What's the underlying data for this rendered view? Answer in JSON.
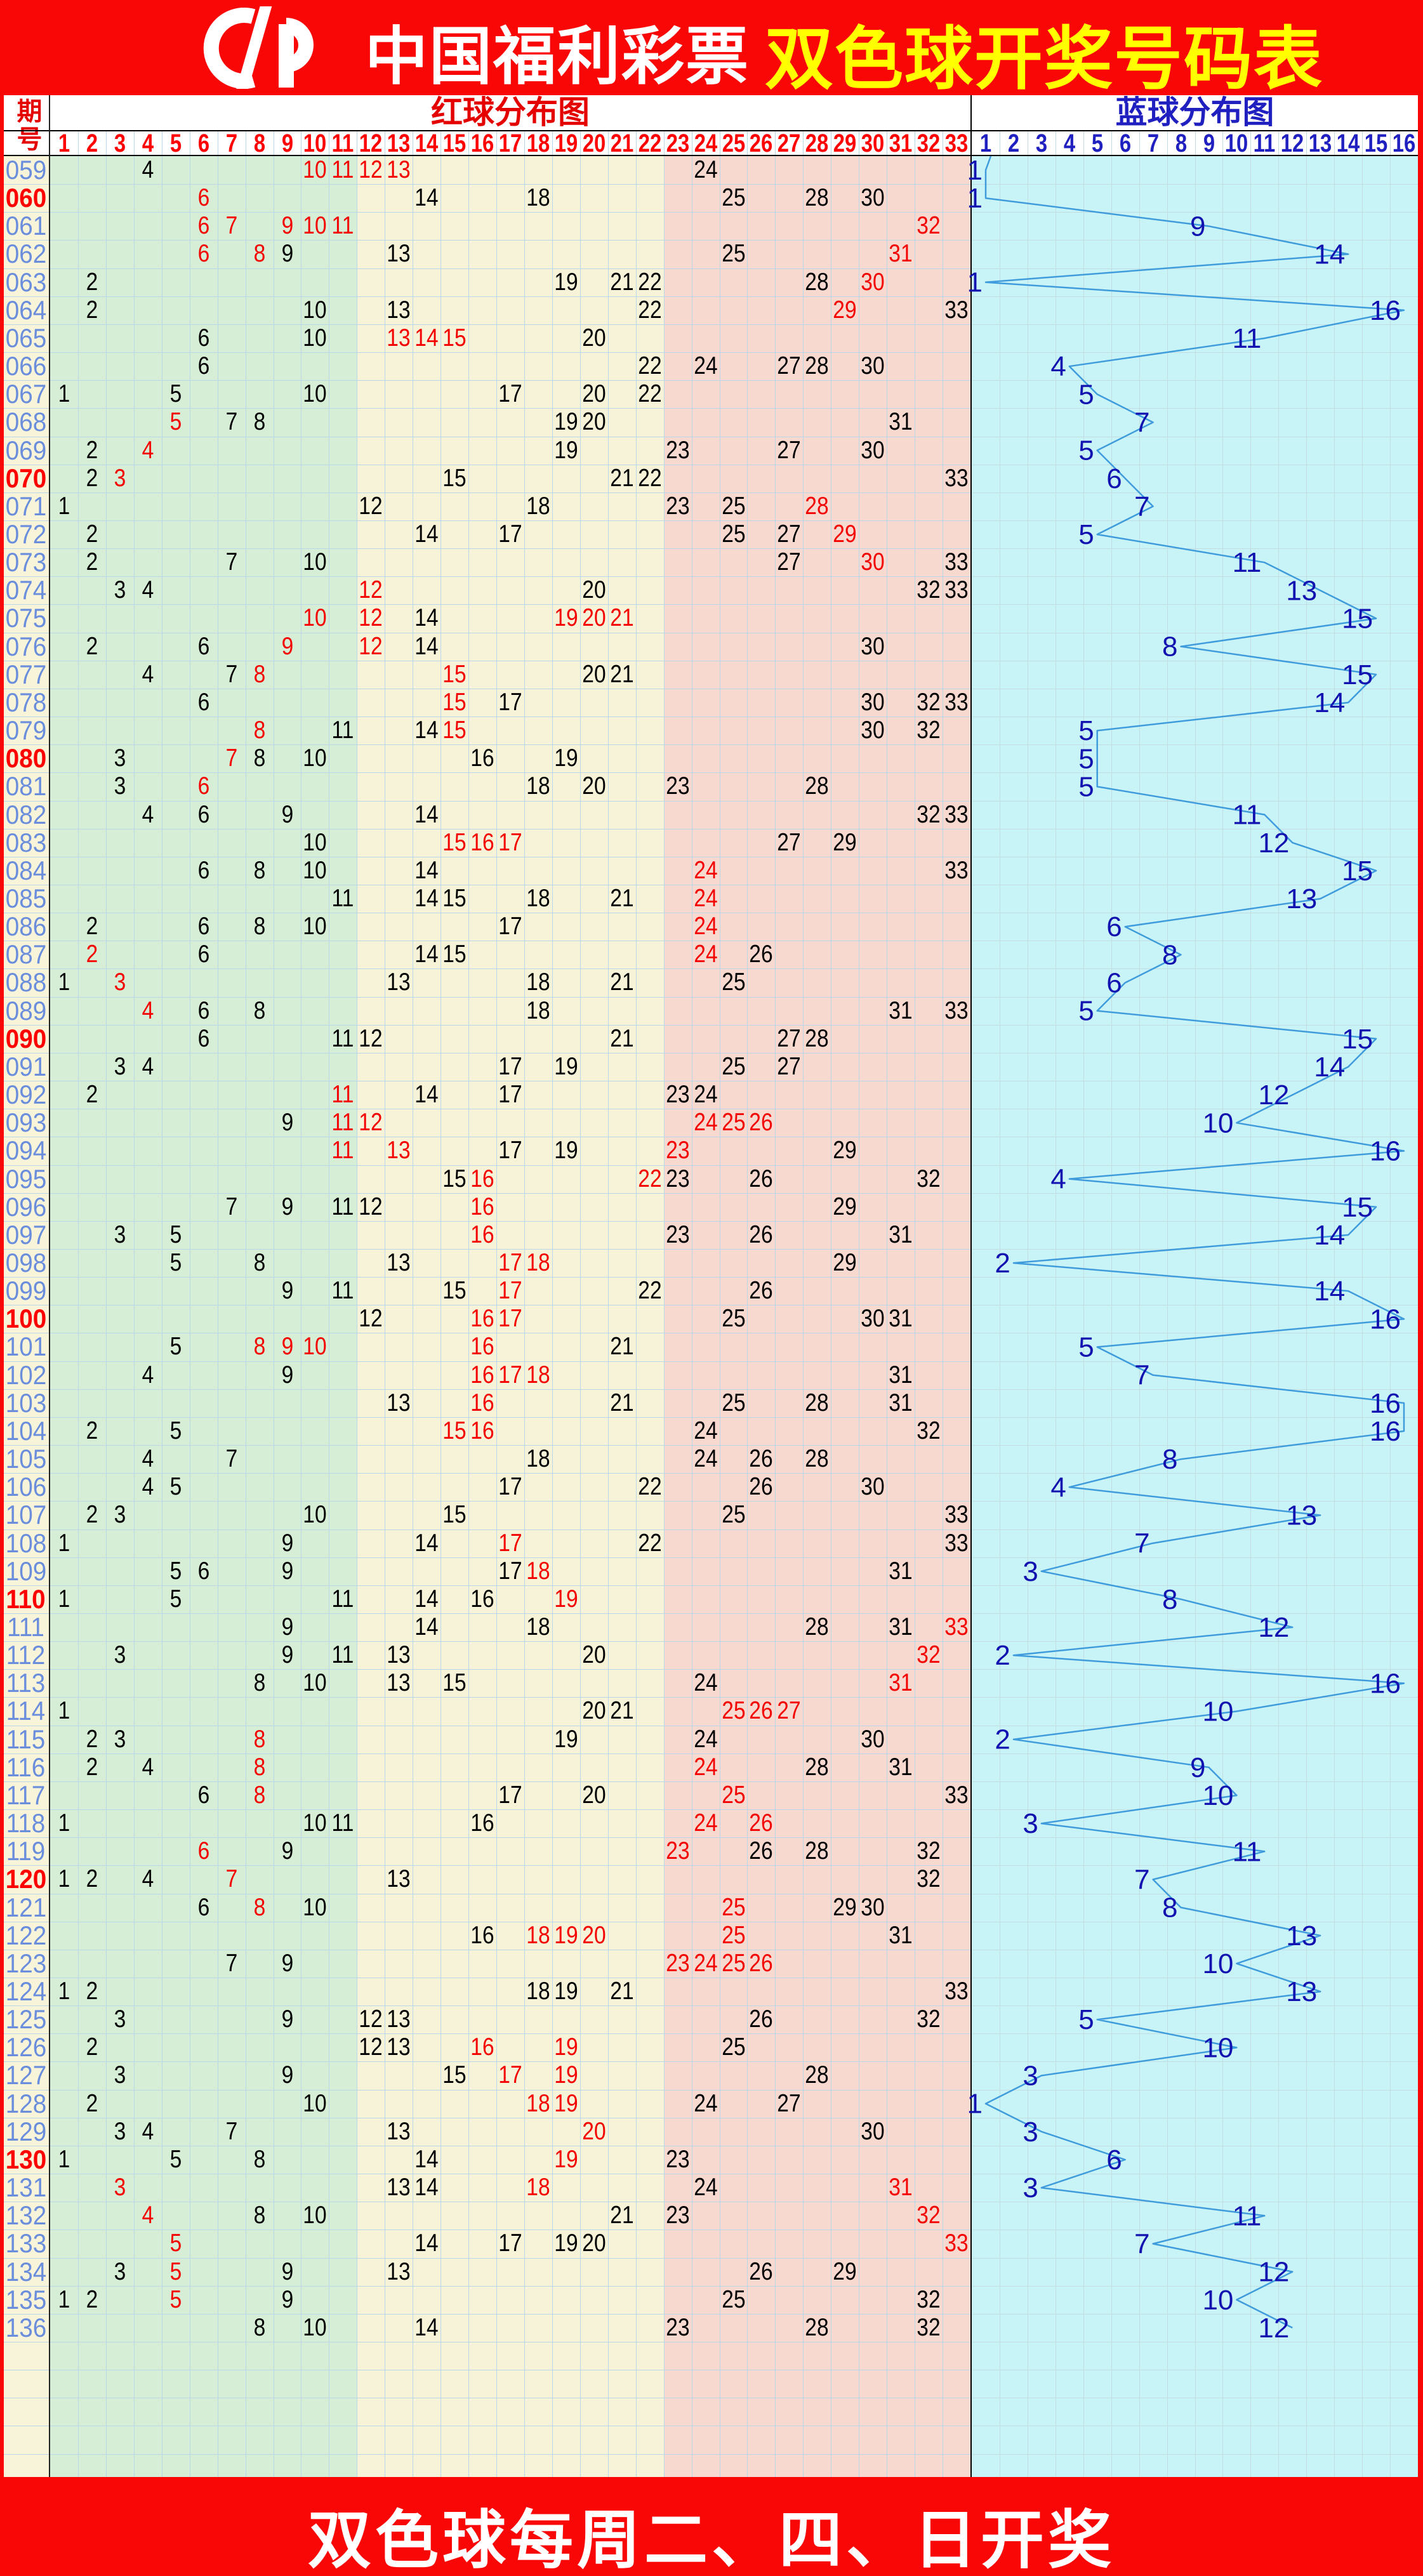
{
  "header": {
    "brand": "中国福利彩票",
    "title": "双色球开奖号码表",
    "logo_icon": "cfp-logo"
  },
  "table": {
    "period_label": "期号",
    "red_title": "红球分布图",
    "blue_title": "蓝球分布图",
    "red_columns": 33,
    "blue_columns": 16
  },
  "footer": {
    "text": "双色球每周二、四、日开奖"
  },
  "colors": {
    "page_red": "#F90606",
    "title_yellow": "#FFFF00",
    "band_green": "#D5EED5",
    "band_cream": "#F7F3D8",
    "band_pink": "#F8D9D0",
    "band_cyan": "#C9F4F7",
    "period_col_bg": "#F8F4DA",
    "grid_red_area": "#B9D7E9",
    "grid_blue_area": "#C2DCE0",
    "period_text_blue": "#6B8EDC",
    "highlight_red": "#FF0000",
    "ball_black": "#000000",
    "ball_hot_red": "#F50000",
    "blue_label": "#1212B0",
    "blue_line": "#3E9BDC",
    "divider_black": "#000000"
  },
  "chart_data": {
    "type": "table",
    "title": "双色球开奖号码表",
    "red_axis_ticks": [
      1,
      2,
      3,
      4,
      5,
      6,
      7,
      8,
      9,
      10,
      11,
      12,
      13,
      14,
      15,
      16,
      17,
      18,
      19,
      20,
      21,
      22,
      23,
      24,
      25,
      26,
      27,
      28,
      29,
      30,
      31,
      32,
      33
    ],
    "blue_axis_ticks": [
      1,
      2,
      3,
      4,
      5,
      6,
      7,
      8,
      9,
      10,
      11,
      12,
      13,
      14,
      15,
      16
    ],
    "rows_format": [
      "period",
      "red_balls",
      "red_highlighted",
      "blue_ball"
    ],
    "rows": [
      [
        "059",
        [
          4,
          10,
          11,
          12,
          13,
          24
        ],
        [
          10,
          11,
          12,
          13
        ],
        1
      ],
      [
        "060",
        [
          6,
          14,
          18,
          25,
          28,
          30
        ],
        [
          6
        ],
        1
      ],
      [
        "061",
        [
          6,
          7,
          9,
          10,
          11,
          32
        ],
        [
          6,
          7,
          9,
          10,
          11,
          32
        ],
        9
      ],
      [
        "062",
        [
          6,
          8,
          9,
          13,
          25,
          31
        ],
        [
          6,
          8,
          31
        ],
        14
      ],
      [
        "063",
        [
          2,
          19,
          21,
          22,
          28,
          30
        ],
        [
          30
        ],
        1
      ],
      [
        "064",
        [
          2,
          10,
          13,
          22,
          29,
          33
        ],
        [
          29
        ],
        16
      ],
      [
        "065",
        [
          6,
          10,
          13,
          14,
          15,
          20
        ],
        [
          13,
          14,
          15
        ],
        11
      ],
      [
        "066",
        [
          6,
          22,
          24,
          27,
          28,
          30
        ],
        [],
        4
      ],
      [
        "067",
        [
          1,
          5,
          10,
          17,
          20,
          22
        ],
        [],
        5
      ],
      [
        "068",
        [
          5,
          7,
          8,
          19,
          20,
          31
        ],
        [
          5
        ],
        7
      ],
      [
        "069",
        [
          2,
          4,
          19,
          23,
          27,
          30
        ],
        [
          4
        ],
        5
      ],
      [
        "070",
        [
          2,
          3,
          15,
          21,
          22,
          33
        ],
        [
          3
        ],
        6
      ],
      [
        "071",
        [
          1,
          12,
          18,
          23,
          25,
          28
        ],
        [
          28
        ],
        7
      ],
      [
        "072",
        [
          2,
          14,
          17,
          25,
          27,
          29
        ],
        [
          29
        ],
        5
      ],
      [
        "073",
        [
          2,
          7,
          10,
          27,
          30,
          33
        ],
        [
          30
        ],
        11
      ],
      [
        "074",
        [
          3,
          4,
          12,
          20,
          32,
          33
        ],
        [
          12
        ],
        13
      ],
      [
        "075",
        [
          10,
          12,
          14,
          19,
          20,
          21
        ],
        [
          10,
          12,
          19,
          20,
          21
        ],
        15
      ],
      [
        "076",
        [
          2,
          6,
          9,
          12,
          14,
          30
        ],
        [
          9,
          12
        ],
        8
      ],
      [
        "077",
        [
          4,
          7,
          8,
          15,
          20,
          21
        ],
        [
          8,
          15
        ],
        15
      ],
      [
        "078",
        [
          6,
          15,
          17,
          30,
          32,
          33
        ],
        [
          15
        ],
        14
      ],
      [
        "079",
        [
          8,
          11,
          14,
          15,
          30,
          32
        ],
        [
          8,
          15
        ],
        5
      ],
      [
        "080",
        [
          3,
          7,
          8,
          10,
          16,
          19
        ],
        [
          7
        ],
        5
      ],
      [
        "081",
        [
          3,
          6,
          18,
          20,
          23,
          28
        ],
        [
          6
        ],
        5
      ],
      [
        "082",
        [
          4,
          6,
          9,
          14,
          32,
          33
        ],
        [],
        11
      ],
      [
        "083",
        [
          10,
          15,
          16,
          17,
          27,
          29
        ],
        [
          15,
          16,
          17
        ],
        12
      ],
      [
        "084",
        [
          6,
          8,
          10,
          14,
          24,
          33
        ],
        [
          24
        ],
        15
      ],
      [
        "085",
        [
          11,
          14,
          15,
          18,
          21,
          24
        ],
        [
          24
        ],
        13
      ],
      [
        "086",
        [
          2,
          6,
          8,
          10,
          17,
          24
        ],
        [
          24
        ],
        6
      ],
      [
        "087",
        [
          2,
          6,
          14,
          15,
          24,
          26
        ],
        [
          2,
          24
        ],
        8
      ],
      [
        "088",
        [
          1,
          3,
          13,
          18,
          21,
          25
        ],
        [
          3
        ],
        6
      ],
      [
        "089",
        [
          4,
          6,
          8,
          18,
          31,
          33
        ],
        [
          4
        ],
        5
      ],
      [
        "090",
        [
          6,
          11,
          12,
          21,
          27,
          28
        ],
        [],
        15
      ],
      [
        "091",
        [
          3,
          4,
          17,
          19,
          25,
          27
        ],
        [],
        14
      ],
      [
        "092",
        [
          2,
          11,
          14,
          17,
          23,
          24
        ],
        [
          11
        ],
        12
      ],
      [
        "093",
        [
          9,
          11,
          12,
          24,
          25,
          26
        ],
        [
          11,
          12,
          24,
          25,
          26
        ],
        10
      ],
      [
        "094",
        [
          11,
          13,
          17,
          19,
          23,
          29
        ],
        [
          11,
          13,
          23
        ],
        16
      ],
      [
        "095",
        [
          15,
          16,
          22,
          23,
          26,
          32
        ],
        [
          16,
          22
        ],
        4
      ],
      [
        "096",
        [
          7,
          9,
          11,
          12,
          16,
          29
        ],
        [
          16
        ],
        15
      ],
      [
        "097",
        [
          3,
          5,
          16,
          23,
          26,
          31
        ],
        [
          16
        ],
        14
      ],
      [
        "098",
        [
          5,
          8,
          13,
          17,
          18,
          29
        ],
        [
          17,
          18
        ],
        2
      ],
      [
        "099",
        [
          9,
          11,
          15,
          17,
          22,
          26
        ],
        [
          17
        ],
        14
      ],
      [
        "100",
        [
          12,
          16,
          17,
          25,
          30,
          31
        ],
        [
          16,
          17
        ],
        16
      ],
      [
        "101",
        [
          5,
          8,
          9,
          10,
          16,
          21
        ],
        [
          8,
          9,
          10,
          16
        ],
        5
      ],
      [
        "102",
        [
          4,
          9,
          16,
          17,
          18,
          31
        ],
        [
          16,
          17,
          18
        ],
        7
      ],
      [
        "103",
        [
          13,
          16,
          21,
          25,
          28,
          31
        ],
        [
          16
        ],
        16
      ],
      [
        "104",
        [
          2,
          5,
          15,
          16,
          24,
          32
        ],
        [
          15,
          16
        ],
        16
      ],
      [
        "105",
        [
          4,
          7,
          18,
          24,
          26,
          28
        ],
        [],
        8
      ],
      [
        "106",
        [
          4,
          5,
          17,
          22,
          26,
          30
        ],
        [],
        4
      ],
      [
        "107",
        [
          2,
          3,
          10,
          15,
          25,
          33
        ],
        [],
        13
      ],
      [
        "108",
        [
          1,
          9,
          14,
          17,
          22,
          33
        ],
        [
          17
        ],
        7
      ],
      [
        "109",
        [
          5,
          6,
          9,
          17,
          18,
          31
        ],
        [
          18
        ],
        3
      ],
      [
        "110",
        [
          1,
          5,
          11,
          14,
          16,
          19
        ],
        [
          19
        ],
        8
      ],
      [
        "111",
        [
          9,
          14,
          18,
          28,
          31,
          33
        ],
        [
          33
        ],
        12
      ],
      [
        "112",
        [
          3,
          9,
          11,
          13,
          20,
          32
        ],
        [
          32
        ],
        2
      ],
      [
        "113",
        [
          8,
          10,
          13,
          15,
          24,
          31
        ],
        [
          31
        ],
        16
      ],
      [
        "114",
        [
          1,
          20,
          21,
          25,
          26,
          27
        ],
        [
          25,
          26,
          27
        ],
        10
      ],
      [
        "115",
        [
          2,
          3,
          8,
          19,
          24,
          30
        ],
        [
          8
        ],
        2
      ],
      [
        "116",
        [
          2,
          4,
          8,
          24,
          28,
          31
        ],
        [
          8,
          24
        ],
        9
      ],
      [
        "117",
        [
          6,
          8,
          17,
          20,
          25,
          33
        ],
        [
          8,
          25
        ],
        10
      ],
      [
        "118",
        [
          1,
          10,
          11,
          16,
          24,
          26
        ],
        [
          24,
          26
        ],
        3
      ],
      [
        "119",
        [
          6,
          9,
          23,
          26,
          28,
          32
        ],
        [
          6,
          23
        ],
        11
      ],
      [
        "120",
        [
          1,
          2,
          4,
          7,
          13,
          32
        ],
        [
          7
        ],
        7
      ],
      [
        "121",
        [
          6,
          8,
          10,
          25,
          29,
          30
        ],
        [
          8,
          25
        ],
        8
      ],
      [
        "122",
        [
          16,
          18,
          19,
          20,
          25,
          31
        ],
        [
          18,
          19,
          20,
          25
        ],
        13
      ],
      [
        "123",
        [
          7,
          9,
          23,
          24,
          25,
          26
        ],
        [
          23,
          24,
          25,
          26
        ],
        10
      ],
      [
        "124",
        [
          1,
          2,
          18,
          19,
          21,
          33
        ],
        [],
        13
      ],
      [
        "125",
        [
          3,
          9,
          12,
          13,
          26,
          32
        ],
        [],
        5
      ],
      [
        "126",
        [
          2,
          12,
          13,
          16,
          19,
          25
        ],
        [
          16,
          19
        ],
        10
      ],
      [
        "127",
        [
          3,
          9,
          15,
          17,
          19,
          28
        ],
        [
          17,
          19
        ],
        3
      ],
      [
        "128",
        [
          2,
          10,
          18,
          19,
          24,
          27
        ],
        [
          18,
          19
        ],
        1
      ],
      [
        "129",
        [
          3,
          4,
          7,
          13,
          20,
          30
        ],
        [
          20
        ],
        3
      ],
      [
        "130",
        [
          1,
          5,
          8,
          14,
          19,
          23
        ],
        [
          19
        ],
        6
      ],
      [
        "131",
        [
          3,
          13,
          14,
          18,
          24,
          31
        ],
        [
          3,
          18,
          31
        ],
        3
      ],
      [
        "132",
        [
          4,
          8,
          10,
          21,
          23,
          32
        ],
        [
          4,
          32
        ],
        11
      ],
      [
        "133",
        [
          5,
          14,
          17,
          19,
          20,
          33
        ],
        [
          5,
          33
        ],
        7
      ],
      [
        "134",
        [
          3,
          5,
          9,
          13,
          26,
          29
        ],
        [
          5
        ],
        12
      ],
      [
        "135",
        [
          1,
          2,
          5,
          9,
          25,
          32
        ],
        [
          5
        ],
        10
      ],
      [
        "136",
        [
          8,
          10,
          14,
          23,
          28,
          32
        ],
        [],
        12
      ]
    ]
  }
}
